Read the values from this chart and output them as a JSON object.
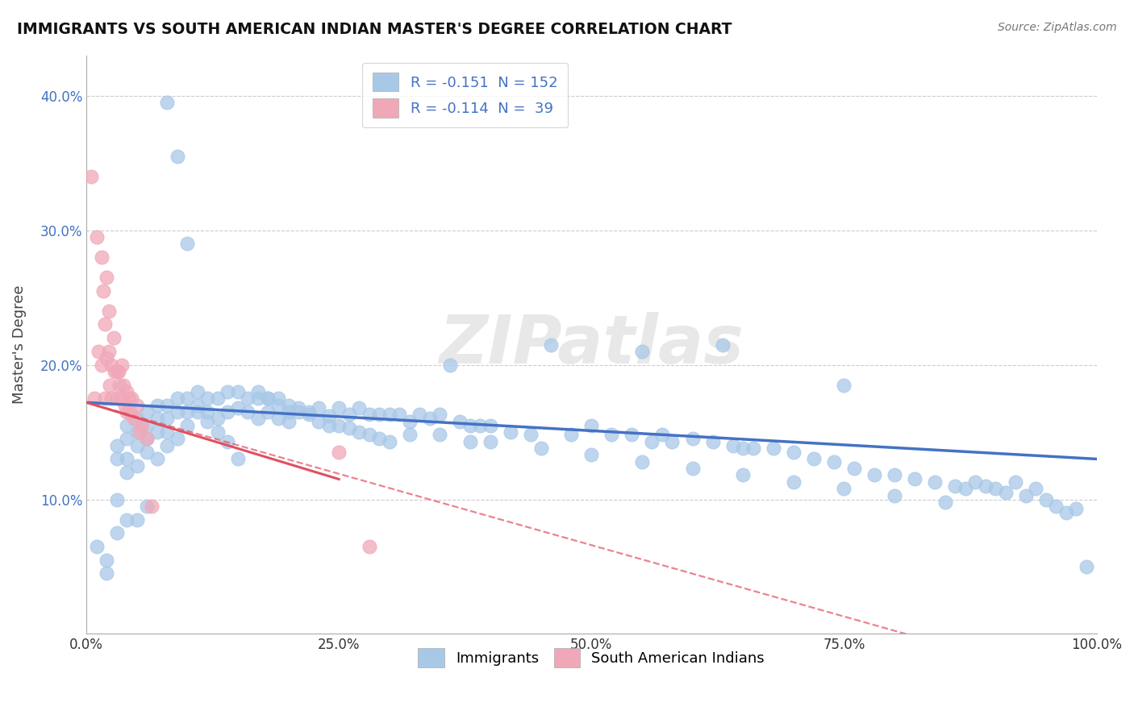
{
  "title": "IMMIGRANTS VS SOUTH AMERICAN INDIAN MASTER'S DEGREE CORRELATION CHART",
  "source": "Source: ZipAtlas.com",
  "ylabel": "Master's Degree",
  "xlim": [
    0.0,
    1.0
  ],
  "ylim": [
    0.0,
    0.43
  ],
  "yticks": [
    0.1,
    0.2,
    0.3,
    0.4
  ],
  "ytick_labels": [
    "10.0%",
    "20.0%",
    "30.0%",
    "40.0%"
  ],
  "xticks": [
    0.0,
    0.25,
    0.5,
    0.75,
    1.0
  ],
  "xtick_labels": [
    "0.0%",
    "25.0%",
    "50.0%",
    "75.0%",
    "100.0%"
  ],
  "immigrants_color": "#a8c8e8",
  "south_american_color": "#f0a8b8",
  "trendline_blue": "#4472c4",
  "trendline_pink": "#e05060",
  "watermark": "ZIPatlas",
  "blue_trend": [
    0.0,
    0.172,
    1.0,
    0.13
  ],
  "pink_trend_solid": [
    0.0,
    0.172,
    0.25,
    0.115
  ],
  "pink_trend_dash": [
    0.0,
    0.172,
    1.0,
    -0.04
  ],
  "immigrants_x": [
    0.01,
    0.02,
    0.02,
    0.03,
    0.03,
    0.03,
    0.03,
    0.04,
    0.04,
    0.04,
    0.04,
    0.04,
    0.05,
    0.05,
    0.05,
    0.05,
    0.05,
    0.06,
    0.06,
    0.06,
    0.06,
    0.06,
    0.07,
    0.07,
    0.07,
    0.07,
    0.08,
    0.08,
    0.08,
    0.08,
    0.09,
    0.09,
    0.09,
    0.1,
    0.1,
    0.1,
    0.11,
    0.11,
    0.12,
    0.12,
    0.13,
    0.13,
    0.14,
    0.14,
    0.15,
    0.15,
    0.16,
    0.16,
    0.17,
    0.17,
    0.18,
    0.18,
    0.19,
    0.19,
    0.2,
    0.2,
    0.21,
    0.22,
    0.23,
    0.24,
    0.25,
    0.26,
    0.27,
    0.28,
    0.29,
    0.3,
    0.31,
    0.32,
    0.33,
    0.34,
    0.35,
    0.36,
    0.37,
    0.38,
    0.39,
    0.4,
    0.42,
    0.44,
    0.46,
    0.48,
    0.5,
    0.52,
    0.54,
    0.55,
    0.56,
    0.57,
    0.58,
    0.6,
    0.62,
    0.63,
    0.64,
    0.65,
    0.66,
    0.68,
    0.7,
    0.72,
    0.74,
    0.75,
    0.76,
    0.78,
    0.8,
    0.82,
    0.84,
    0.86,
    0.87,
    0.88,
    0.89,
    0.9,
    0.91,
    0.92,
    0.93,
    0.94,
    0.95,
    0.96,
    0.97,
    0.98,
    0.99,
    0.17,
    0.18,
    0.19,
    0.2,
    0.21,
    0.22,
    0.23,
    0.24,
    0.25,
    0.26,
    0.27,
    0.28,
    0.29,
    0.3,
    0.32,
    0.35,
    0.38,
    0.4,
    0.45,
    0.5,
    0.55,
    0.6,
    0.65,
    0.7,
    0.75,
    0.8,
    0.85,
    0.08,
    0.09,
    0.1,
    0.11,
    0.12,
    0.13,
    0.14,
    0.15
  ],
  "immigrants_y": [
    0.065,
    0.055,
    0.045,
    0.14,
    0.13,
    0.1,
    0.075,
    0.155,
    0.145,
    0.13,
    0.12,
    0.085,
    0.16,
    0.15,
    0.14,
    0.125,
    0.085,
    0.165,
    0.155,
    0.145,
    0.135,
    0.095,
    0.17,
    0.16,
    0.15,
    0.13,
    0.17,
    0.16,
    0.15,
    0.14,
    0.175,
    0.165,
    0.145,
    0.175,
    0.165,
    0.155,
    0.18,
    0.17,
    0.175,
    0.165,
    0.175,
    0.16,
    0.18,
    0.165,
    0.18,
    0.168,
    0.175,
    0.165,
    0.175,
    0.16,
    0.175,
    0.165,
    0.175,
    0.16,
    0.17,
    0.158,
    0.168,
    0.165,
    0.168,
    0.162,
    0.168,
    0.163,
    0.168,
    0.163,
    0.163,
    0.163,
    0.163,
    0.158,
    0.163,
    0.16,
    0.163,
    0.2,
    0.158,
    0.155,
    0.155,
    0.155,
    0.15,
    0.148,
    0.215,
    0.148,
    0.155,
    0.148,
    0.148,
    0.21,
    0.143,
    0.148,
    0.143,
    0.145,
    0.143,
    0.215,
    0.14,
    0.138,
    0.138,
    0.138,
    0.135,
    0.13,
    0.128,
    0.185,
    0.123,
    0.118,
    0.118,
    0.115,
    0.113,
    0.11,
    0.108,
    0.113,
    0.11,
    0.108,
    0.105,
    0.113,
    0.103,
    0.108,
    0.1,
    0.095,
    0.09,
    0.093,
    0.05,
    0.18,
    0.175,
    0.17,
    0.165,
    0.165,
    0.163,
    0.158,
    0.155,
    0.155,
    0.153,
    0.15,
    0.148,
    0.145,
    0.143,
    0.148,
    0.148,
    0.143,
    0.143,
    0.138,
    0.133,
    0.128,
    0.123,
    0.118,
    0.113,
    0.108,
    0.103,
    0.098,
    0.395,
    0.355,
    0.29,
    0.165,
    0.158,
    0.15,
    0.143,
    0.13
  ],
  "south_x": [
    0.005,
    0.008,
    0.01,
    0.012,
    0.015,
    0.015,
    0.017,
    0.018,
    0.018,
    0.02,
    0.02,
    0.022,
    0.022,
    0.023,
    0.025,
    0.025,
    0.027,
    0.028,
    0.03,
    0.03,
    0.032,
    0.033,
    0.035,
    0.035,
    0.037,
    0.038,
    0.04,
    0.04,
    0.042,
    0.043,
    0.045,
    0.047,
    0.05,
    0.053,
    0.055,
    0.06,
    0.065,
    0.25,
    0.28
  ],
  "south_y": [
    0.34,
    0.175,
    0.295,
    0.21,
    0.28,
    0.2,
    0.255,
    0.23,
    0.175,
    0.265,
    0.205,
    0.24,
    0.21,
    0.185,
    0.2,
    0.175,
    0.22,
    0.195,
    0.195,
    0.175,
    0.195,
    0.185,
    0.2,
    0.175,
    0.185,
    0.17,
    0.18,
    0.165,
    0.175,
    0.165,
    0.175,
    0.16,
    0.17,
    0.15,
    0.155,
    0.145,
    0.095,
    0.135,
    0.065
  ]
}
